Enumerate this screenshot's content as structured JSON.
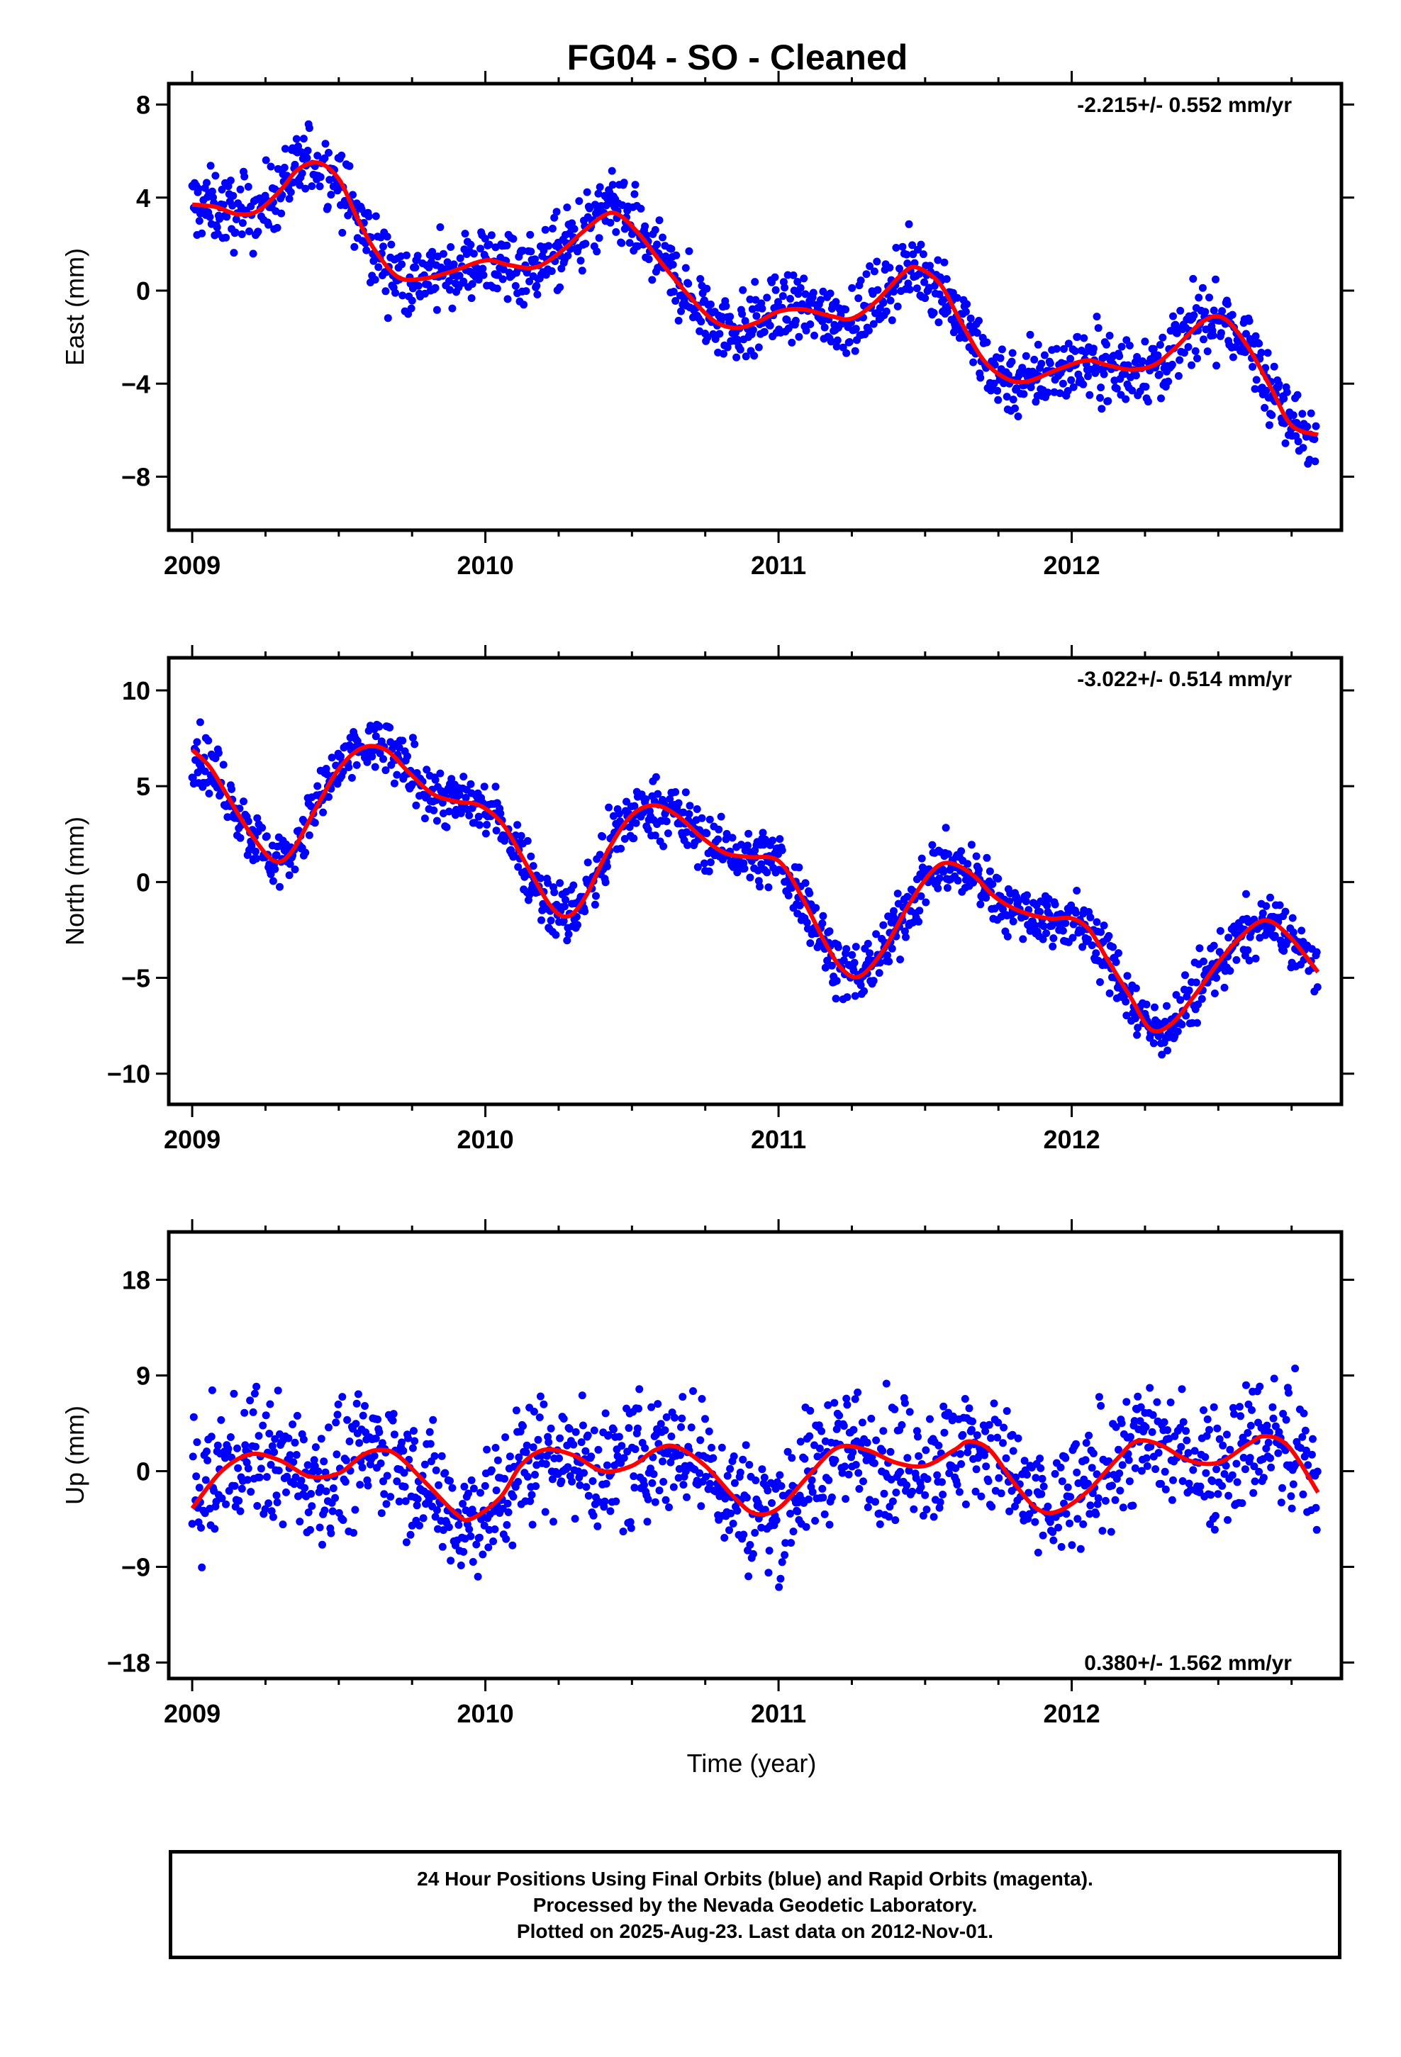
{
  "title": "FG04  - SO - Cleaned",
  "colors": {
    "data": "#0000ff",
    "model": "#ff0000",
    "frame": "#000000"
  },
  "xlabel": "Time (year)",
  "footer": {
    "line1": "24 Hour Positions Using Final Orbits (blue) and Rapid Orbits (magenta).",
    "line2": "Processed by the Nevada Geodetic Laboratory.",
    "line3": "Plotted on 2025-Aug-23. Last data on 2012-Nov-01."
  },
  "chart_data": [
    {
      "type": "scatter",
      "id": "east",
      "ylabel": "East (mm)",
      "rate_label": "-2.215+/- 0.552 mm/yr",
      "rate_position": "top-right",
      "xlim": [
        2008.92,
        2012.92
      ],
      "ylim": [
        -10.3,
        8.9
      ],
      "xticks": [
        2009,
        2010,
        2011,
        2012
      ],
      "yticks": [
        8,
        4,
        0,
        -4,
        -8
      ],
      "ytick_labels": [
        "8",
        "4",
        "0",
        "−4",
        "−8"
      ],
      "series": [
        {
          "role": "daily positions (final orbits)",
          "points": "generated from model + scatter, 2009.0–2012.84"
        },
        {
          "role": "fitted model",
          "x": [
            2009.0,
            2009.08,
            2009.15,
            2009.22,
            2009.3,
            2009.36,
            2009.43,
            2009.5,
            2009.56,
            2009.62,
            2009.7,
            2009.78,
            2009.88,
            2010.0,
            2010.08,
            2010.17,
            2010.25,
            2010.33,
            2010.4,
            2010.45,
            2010.52,
            2010.6,
            2010.7,
            2010.78,
            2010.85,
            2010.92,
            2011.0,
            2011.08,
            2011.18,
            2011.25,
            2011.33,
            2011.42,
            2011.47,
            2011.55,
            2011.62,
            2011.7,
            2011.78,
            2011.85,
            2011.95,
            2012.05,
            2012.12,
            2012.2,
            2012.28,
            2012.35,
            2012.45,
            2012.52,
            2012.6,
            2012.68,
            2012.75,
            2012.84
          ],
          "y": [
            3.7,
            3.6,
            3.3,
            3.4,
            4.3,
            5.2,
            5.5,
            4.8,
            3.2,
            1.8,
            0.6,
            0.5,
            0.8,
            1.3,
            1.1,
            1.0,
            1.6,
            2.5,
            3.2,
            3.3,
            2.5,
            1.2,
            -0.3,
            -1.3,
            -1.6,
            -1.4,
            -0.9,
            -0.8,
            -1.1,
            -1.2,
            -0.5,
            0.7,
            1.0,
            0.3,
            -1.3,
            -3.0,
            -3.8,
            -3.9,
            -3.4,
            -3.0,
            -3.2,
            -3.4,
            -3.2,
            -2.5,
            -1.3,
            -1.2,
            -2.4,
            -4.2,
            -5.8,
            -6.2
          ]
        }
      ]
    },
    {
      "type": "scatter",
      "id": "north",
      "ylabel": "North (mm)",
      "rate_label": "-3.022+/- 0.514 mm/yr",
      "rate_position": "top-right",
      "xlim": [
        2008.92,
        2012.92
      ],
      "ylim": [
        -11.6,
        11.7
      ],
      "xticks": [
        2009,
        2010,
        2011,
        2012
      ],
      "yticks": [
        10,
        5,
        0,
        -5,
        -10
      ],
      "ytick_labels": [
        "10",
        "5",
        "0",
        "−5",
        "−10"
      ],
      "series": [
        {
          "role": "daily positions (final orbits)",
          "points": "generated from model + scatter, 2009.0–2012.84"
        },
        {
          "role": "fitted model",
          "x": [
            2009.0,
            2009.06,
            2009.12,
            2009.2,
            2009.28,
            2009.34,
            2009.42,
            2009.5,
            2009.58,
            2009.66,
            2009.74,
            2009.82,
            2009.9,
            2009.98,
            2010.06,
            2010.14,
            2010.22,
            2010.28,
            2010.34,
            2010.42,
            2010.5,
            2010.58,
            2010.66,
            2010.74,
            2010.82,
            2010.9,
            2011.0,
            2011.08,
            2011.16,
            2011.22,
            2011.28,
            2011.36,
            2011.44,
            2011.52,
            2011.58,
            2011.66,
            2011.74,
            2011.82,
            2011.92,
            2012.0,
            2012.06,
            2012.12,
            2012.2,
            2012.27,
            2012.34,
            2012.42,
            2012.5,
            2012.58,
            2012.66,
            2012.74,
            2012.84
          ],
          "y": [
            6.9,
            6.0,
            4.5,
            2.5,
            1.1,
            1.6,
            3.8,
            5.9,
            7.0,
            6.9,
            5.7,
            4.6,
            4.2,
            4.0,
            3.0,
            0.9,
            -1.2,
            -1.8,
            -0.8,
            1.7,
            3.5,
            4.0,
            3.4,
            2.3,
            1.5,
            1.3,
            1.1,
            -0.8,
            -3.2,
            -4.6,
            -4.9,
            -3.5,
            -1.3,
            0.5,
            1.0,
            0.4,
            -0.8,
            -1.5,
            -1.9,
            -1.9,
            -2.5,
            -4.0,
            -6.0,
            -7.7,
            -7.4,
            -5.9,
            -4.2,
            -2.8,
            -2.0,
            -2.8,
            -4.7
          ]
        }
      ]
    },
    {
      "type": "scatter",
      "id": "up",
      "ylabel": "Up (mm)",
      "rate_label": "0.380+/- 1.562 mm/yr",
      "rate_position": "bottom-right",
      "xlim": [
        2008.92,
        2012.92
      ],
      "ylim": [
        -19.5,
        22.5
      ],
      "xticks": [
        2009,
        2010,
        2011,
        2012
      ],
      "yticks": [
        18,
        9,
        0,
        -9,
        -18
      ],
      "ytick_labels": [
        "18",
        "9",
        "0",
        "−9",
        "−18"
      ],
      "series": [
        {
          "role": "daily positions (final orbits)",
          "points": "generated from model + scatter, 2009.0–2012.84"
        },
        {
          "role": "fitted model",
          "x": [
            2009.0,
            2009.1,
            2009.2,
            2009.3,
            2009.4,
            2009.5,
            2009.58,
            2009.64,
            2009.7,
            2009.8,
            2009.9,
            2009.95,
            2010.05,
            2010.12,
            2010.2,
            2010.3,
            2010.4,
            2010.5,
            2010.58,
            2010.65,
            2010.75,
            2010.85,
            2010.92,
            2011.0,
            2011.1,
            2011.2,
            2011.3,
            2011.4,
            2011.5,
            2011.6,
            2011.65,
            2011.72,
            2011.8,
            2011.88,
            2011.95,
            2012.05,
            2012.15,
            2012.22,
            2012.3,
            2012.4,
            2012.5,
            2012.6,
            2012.66,
            2012.74,
            2012.84
          ],
          "y": [
            -3.5,
            0.0,
            1.6,
            1.0,
            -0.5,
            -0.2,
            1.5,
            2.0,
            1.5,
            -1.2,
            -4.0,
            -4.5,
            -2.5,
            0.5,
            2.0,
            1.5,
            0.0,
            0.5,
            2.0,
            2.3,
            0.5,
            -2.5,
            -4.0,
            -3.5,
            -0.5,
            2.2,
            2.0,
            0.8,
            0.5,
            2.0,
            2.8,
            2.0,
            -1.0,
            -3.5,
            -3.8,
            -2.0,
            1.0,
            2.8,
            2.5,
            1.0,
            0.8,
            2.5,
            3.3,
            2.3,
            -2.0
          ]
        }
      ]
    }
  ]
}
